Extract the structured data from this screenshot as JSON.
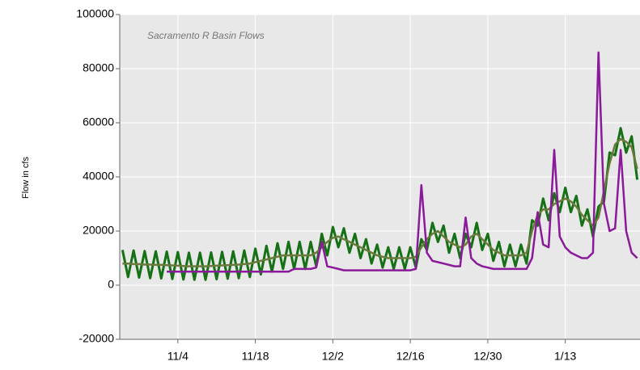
{
  "chart_data": {
    "type": "line",
    "title": "Sacramento R Basin Flows",
    "ylabel": "Flow in cfs",
    "categories": [
      null,
      null,
      null,
      null,
      null,
      null,
      null,
      null,
      null,
      null,
      "11/4",
      null,
      null,
      null,
      null,
      null,
      null,
      null,
      null,
      null,
      null,
      null,
      null,
      null,
      "11/18",
      null,
      null,
      null,
      null,
      null,
      null,
      null,
      null,
      null,
      null,
      null,
      null,
      null,
      "12/2",
      null,
      null,
      null,
      null,
      null,
      null,
      null,
      null,
      null,
      null,
      null,
      null,
      null,
      "12/16",
      null,
      null,
      null,
      null,
      null,
      null,
      null,
      null,
      null,
      null,
      null,
      null,
      null,
      "12/30",
      null,
      null,
      null,
      null,
      null,
      null,
      null,
      null,
      null,
      null,
      null,
      null,
      null,
      "1/13",
      null,
      null,
      null,
      null,
      null,
      null,
      null,
      null,
      null,
      null,
      null,
      null,
      null
    ],
    "series": [
      {
        "color": "#167016",
        "values": [
          13000,
          3000,
          12800,
          2800,
          12600,
          2600,
          12500,
          2500,
          12400,
          2300,
          12200,
          2100,
          12000,
          2000,
          12000,
          2000,
          12100,
          2200,
          12300,
          2400,
          12500,
          2600,
          12800,
          3000,
          13500,
          4000,
          14500,
          5000,
          15500,
          6000,
          16000,
          6000,
          16000,
          6000,
          16000,
          7000,
          19000,
          11000,
          21500,
          14000,
          21000,
          12000,
          19000,
          10000,
          17000,
          8000,
          15000,
          6500,
          14000,
          6000,
          14000,
          6000,
          14000,
          6500,
          17000,
          13000,
          23000,
          16000,
          22000,
          12000,
          19000,
          10000,
          19000,
          14000,
          23000,
          13000,
          19000,
          9000,
          16000,
          7000,
          15000,
          7000,
          15000,
          8000,
          24000,
          22000,
          32000,
          24000,
          34000,
          27000,
          36000,
          27000,
          33000,
          22000,
          28000,
          18000,
          29000,
          31000,
          49000,
          48000,
          58000,
          49000,
          55000,
          39000
        ]
      },
      {
        "color": "#6b7a3c",
        "values": [
          8000,
          8000,
          7800,
          7800,
          7600,
          7600,
          7500,
          7500,
          7400,
          7300,
          7200,
          7100,
          7000,
          7000,
          7000,
          7000,
          7100,
          7200,
          7300,
          7400,
          7500,
          7600,
          7800,
          8000,
          8500,
          9000,
          9500,
          10000,
          10500,
          11000,
          11000,
          11000,
          11000,
          11000,
          11000,
          12000,
          14000,
          16000,
          17500,
          18000,
          17000,
          16000,
          15000,
          14000,
          13000,
          12000,
          11000,
          10500,
          10000,
          10000,
          10000,
          10000,
          10000,
          10500,
          14000,
          17000,
          19000,
          20000,
          18000,
          16000,
          15000,
          14000,
          15000,
          18000,
          19000,
          17000,
          15000,
          13000,
          12000,
          11000,
          11000,
          11000,
          11000,
          12000,
          20000,
          26000,
          28000,
          28000,
          30000,
          31000,
          32000,
          31000,
          29000,
          26000,
          24000,
          22000,
          25000,
          35000,
          45000,
          52000,
          54000,
          53000,
          51000,
          43000
        ]
      },
      {
        "color": "#8a1a9a",
        "values": [
          null,
          null,
          null,
          null,
          null,
          null,
          null,
          null,
          5000,
          5000,
          5000,
          5000,
          5000,
          5000,
          5000,
          5000,
          5000,
          5000,
          5000,
          5000,
          5000,
          5000,
          5000,
          5000,
          5000,
          5000,
          5000,
          5000,
          5000,
          5000,
          5000,
          6000,
          6000,
          6000,
          6000,
          6500,
          16000,
          7000,
          6500,
          6000,
          5500,
          5500,
          5500,
          5500,
          5500,
          5500,
          5500,
          5500,
          5500,
          5500,
          5500,
          5500,
          5500,
          6000,
          37000,
          12000,
          9000,
          8500,
          8000,
          7500,
          7000,
          7000,
          25000,
          10000,
          8000,
          7000,
          6500,
          6000,
          6000,
          6000,
          6000,
          6000,
          6000,
          6000,
          10000,
          27000,
          15000,
          14000,
          50000,
          18000,
          14000,
          12000,
          11000,
          10000,
          10000,
          12000,
          86000,
          30000,
          20000,
          21000,
          50000,
          20000,
          12000,
          10000
        ]
      }
    ],
    "ylim": [
      -20000,
      100000
    ],
    "yticks": [
      -20000,
      0,
      20000,
      40000,
      60000,
      80000,
      100000
    ],
    "grid": true
  }
}
